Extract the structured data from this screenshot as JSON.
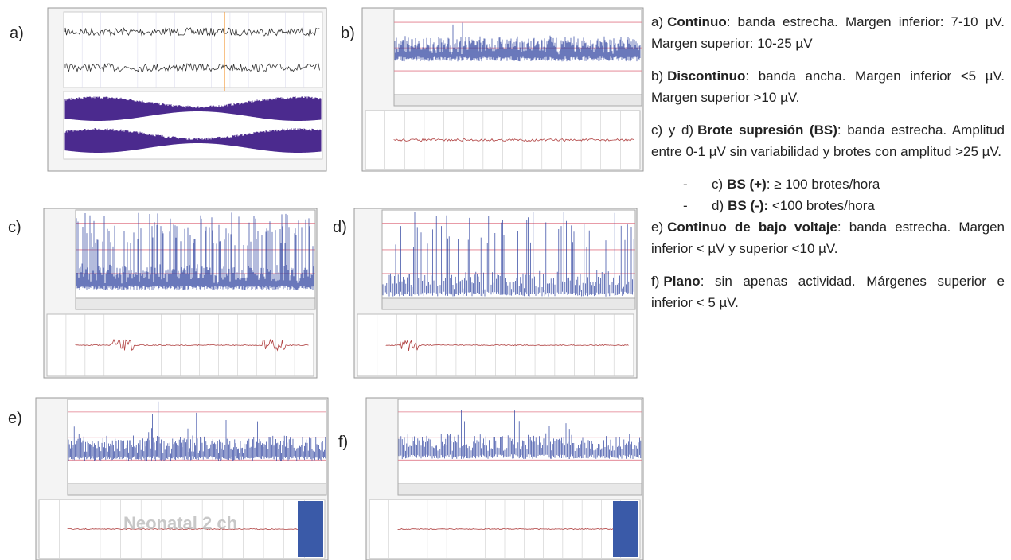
{
  "panels": [
    {
      "label": "a)"
    },
    {
      "label": "b)"
    },
    {
      "label": "c)"
    },
    {
      "label": "d)"
    },
    {
      "label": "e)",
      "watermark": "Neonatal 2 ch"
    },
    {
      "label": "f)"
    }
  ],
  "descriptions": [
    {
      "label": "a)",
      "term": "Continuo",
      "text": ": banda estrecha. Margen inferior: 7-10 µV. Margen superior: 10-25 µV"
    },
    {
      "label": "b)",
      "term": "Discontinuo",
      "text": ": banda ancha. Margen inferior <5 µV. Margen superior >10 µV."
    },
    {
      "label": "c) y d)",
      "term": "Brote supresión (BS)",
      "text": ": banda estrecha. Amplitud entre 0-1 µV sin variabilidad y brotes con amplitud >25 µV.",
      "subitems": [
        {
          "marker": "-",
          "label": "c)",
          "term": "BS (+)",
          "text": ": ≥ 100 brotes/hora"
        },
        {
          "marker": "-",
          "label": "d)",
          "term": "BS (-):",
          "text": " <100 brotes/hora"
        }
      ]
    },
    {
      "label": "e)",
      "term": "Continuo de bajo voltaje",
      "text": ": banda estrecha. Margen inferior < µV y superior <10 µV."
    },
    {
      "label": "f)",
      "term": "Plano",
      "text": ": sin apenas actividad. Márgenes superior e inferior < 5 µV."
    }
  ]
}
